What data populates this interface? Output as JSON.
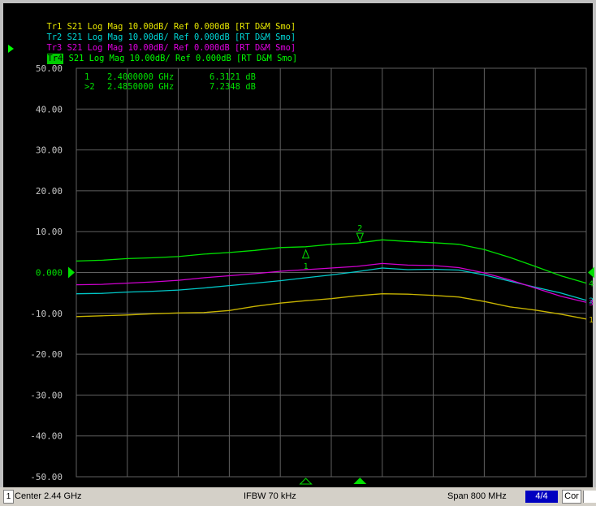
{
  "traces": [
    {
      "tag": "Tr1",
      "rest": " S21 Log Mag 10.00dB/ Ref 0.000dB [RT D&M Smo]",
      "color": "#e8e800"
    },
    {
      "tag": "Tr2",
      "rest": " S21 Log Mag 10.00dB/ Ref 0.000dB [RT D&M Smo]",
      "color": "#00d8d8"
    },
    {
      "tag": "Tr3",
      "rest": " S21 Log Mag 10.00dB/ Ref 0.000dB [RT D&M Smo]",
      "color": "#e000e0"
    },
    {
      "tag": "Tr4",
      "rest": " S21 Log Mag 10.00dB/ Ref 0.000dB [RT D&M Smo]",
      "color": "#00ff00"
    }
  ],
  "markers_readout": [
    {
      "label": " 1",
      "freq": "2.4000000 GHz",
      "value": " 6.3121 dB"
    },
    {
      "label": ">2",
      "freq": "2.4850000 GHz",
      "value": " 7.2348 dB"
    }
  ],
  "status": {
    "channel": "1",
    "center": "Center 2.44 GHz",
    "ifbw": "IFBW 70 kHz",
    "span": "Span 800 MHz",
    "trace_count": "4/4",
    "correction": "Cor"
  },
  "chart_data": {
    "type": "line",
    "xlabel": "",
    "ylabel": "",
    "xlim": [
      2.04,
      2.84
    ],
    "ylim": [
      -50,
      50
    ],
    "y_ticks": [
      "50.00",
      "40.00",
      "30.00",
      "20.00",
      "10.00",
      "0.000",
      "-10.00",
      "-20.00",
      "-30.00",
      "-40.00",
      "-50.00"
    ],
    "grid": true,
    "x": [
      2.04,
      2.08,
      2.12,
      2.16,
      2.2,
      2.24,
      2.28,
      2.32,
      2.36,
      2.4,
      2.44,
      2.48,
      2.52,
      2.56,
      2.6,
      2.64,
      2.68,
      2.72,
      2.76,
      2.8,
      2.84
    ],
    "series": [
      {
        "name": "Tr1",
        "color": "#c8b400",
        "end_label": "1",
        "values": [
          -10.8,
          -10.6,
          -10.4,
          -10.1,
          -9.9,
          -9.8,
          -9.3,
          -8.3,
          -7.5,
          -6.9,
          -6.4,
          -5.7,
          -5.2,
          -5.3,
          -5.6,
          -6.0,
          -7.1,
          -8.4,
          -9.2,
          -10.2,
          -11.4
        ]
      },
      {
        "name": "Tr2",
        "color": "#00c8c8",
        "end_label": "2",
        "values": [
          -5.2,
          -5.1,
          -4.8,
          -4.6,
          -4.3,
          -3.8,
          -3.2,
          -2.6,
          -2.0,
          -1.3,
          -0.6,
          0.2,
          1.1,
          0.7,
          0.8,
          0.6,
          -0.6,
          -2.1,
          -3.6,
          -5.0,
          -6.8
        ]
      },
      {
        "name": "Tr3",
        "color": "#d000d0",
        "end_label": "3",
        "values": [
          -3.0,
          -2.9,
          -2.6,
          -2.3,
          -1.9,
          -1.3,
          -0.8,
          -0.3,
          0.3,
          0.7,
          1.1,
          1.5,
          2.2,
          1.8,
          1.7,
          1.2,
          -0.1,
          -1.8,
          -3.8,
          -5.8,
          -7.3
        ]
      },
      {
        "name": "Tr4",
        "color": "#00e000",
        "end_label": "4",
        "values": [
          2.8,
          3.0,
          3.4,
          3.6,
          3.9,
          4.5,
          4.9,
          5.4,
          6.1,
          6.3,
          6.9,
          7.2,
          8.0,
          7.6,
          7.3,
          6.9,
          5.6,
          3.7,
          1.5,
          -0.8,
          -2.6
        ]
      }
    ],
    "markers": [
      {
        "id": "1",
        "x": 2.4,
        "y": 6.3121,
        "trace": "Tr4",
        "symbol": "delta",
        "position": "below"
      },
      {
        "id": "2",
        "x": 2.485,
        "y": 7.2348,
        "trace": "Tr4",
        "symbol": "nabla",
        "position": "above",
        "active": true
      }
    ],
    "reference_level": 0,
    "colors": {
      "grid": "#606060",
      "axis_text": "#c8c8c8",
      "marker": "#00e000",
      "reference_arrow": "#00e000"
    }
  }
}
